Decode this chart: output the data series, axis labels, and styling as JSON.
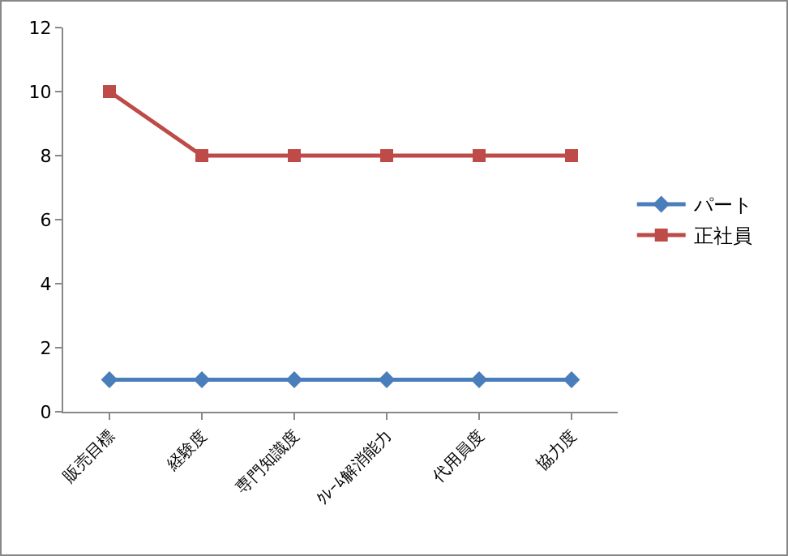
{
  "chart_data": {
    "type": "line",
    "categories": [
      "販売目標",
      "経験度",
      "専門知識度",
      "ｸﾚｰﾑ解消能力",
      "代用員度",
      "協力度"
    ],
    "series": [
      {
        "name": "パート",
        "color": "#4a7ebb",
        "marker": "diamond",
        "values": [
          1,
          1,
          1,
          1,
          1,
          1
        ]
      },
      {
        "name": "正社員",
        "color": "#be4b48",
        "marker": "square",
        "values": [
          10,
          8,
          8,
          8,
          8,
          8
        ]
      }
    ],
    "ylim": [
      0,
      12
    ],
    "yticks": [
      0,
      2,
      4,
      6,
      8,
      10,
      12
    ],
    "grid": false,
    "legend": "right"
  }
}
